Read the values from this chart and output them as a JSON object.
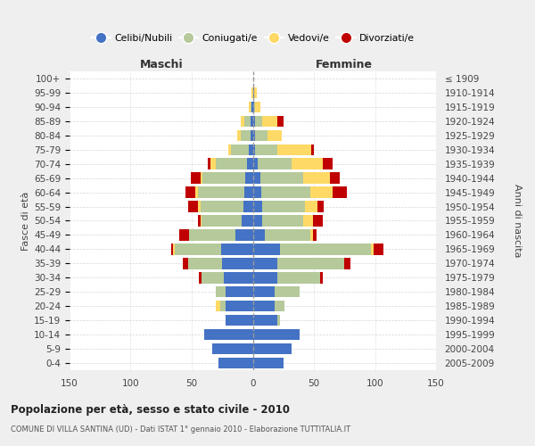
{
  "age_groups": [
    "0-4",
    "5-9",
    "10-14",
    "15-19",
    "20-24",
    "25-29",
    "30-34",
    "35-39",
    "40-44",
    "45-49",
    "50-54",
    "55-59",
    "60-64",
    "65-69",
    "70-74",
    "75-79",
    "80-84",
    "85-89",
    "90-94",
    "95-99",
    "100+"
  ],
  "birth_years": [
    "2005-2009",
    "2000-2004",
    "1995-1999",
    "1990-1994",
    "1985-1989",
    "1980-1984",
    "1975-1979",
    "1970-1974",
    "1965-1969",
    "1960-1964",
    "1955-1959",
    "1950-1954",
    "1945-1949",
    "1940-1944",
    "1935-1939",
    "1930-1934",
    "1925-1929",
    "1920-1924",
    "1915-1919",
    "1910-1914",
    "≤ 1909"
  ],
  "colors": {
    "celibi": "#4472c4",
    "coniugati": "#b5c99a",
    "vedovi": "#ffd966",
    "divorziati": "#c00000"
  },
  "maschi": {
    "celibi": [
      28,
      33,
      40,
      22,
      22,
      22,
      24,
      25,
      26,
      14,
      9,
      8,
      7,
      6,
      5,
      3,
      2,
      2,
      1,
      0,
      0
    ],
    "coniugati": [
      0,
      0,
      0,
      0,
      5,
      8,
      18,
      28,
      38,
      38,
      33,
      35,
      38,
      35,
      25,
      15,
      8,
      5,
      1,
      0,
      0
    ],
    "vedovi": [
      0,
      0,
      0,
      0,
      3,
      0,
      0,
      0,
      1,
      0,
      1,
      2,
      2,
      2,
      5,
      2,
      3,
      3,
      1,
      1,
      0
    ],
    "divorziati": [
      0,
      0,
      0,
      0,
      0,
      0,
      2,
      4,
      2,
      8,
      2,
      8,
      8,
      8,
      2,
      0,
      0,
      0,
      0,
      0,
      0
    ]
  },
  "femmine": {
    "celibi": [
      25,
      32,
      38,
      20,
      18,
      18,
      20,
      20,
      22,
      10,
      8,
      8,
      7,
      6,
      4,
      2,
      2,
      2,
      1,
      1,
      0
    ],
    "coniugati": [
      0,
      0,
      0,
      2,
      8,
      20,
      35,
      55,
      75,
      37,
      33,
      35,
      40,
      35,
      28,
      18,
      10,
      6,
      1,
      0,
      0
    ],
    "vedovi": [
      0,
      0,
      0,
      0,
      0,
      0,
      0,
      0,
      2,
      2,
      8,
      10,
      18,
      22,
      25,
      28,
      12,
      12,
      4,
      2,
      0
    ],
    "divorziati": [
      0,
      0,
      0,
      0,
      0,
      0,
      2,
      5,
      8,
      3,
      8,
      5,
      12,
      8,
      8,
      2,
      0,
      5,
      0,
      0,
      0
    ]
  },
  "xlim": 150,
  "xticks": [
    -150,
    -100,
    -50,
    0,
    50,
    100,
    150
  ],
  "title": "Popolazione per età, sesso e stato civile - 2010",
  "subtitle": "COMUNE DI VILLA SANTINA (UD) - Dati ISTAT 1° gennaio 2010 - Elaborazione TUTTITALIA.IT",
  "ylabel_left": "Fasce di età",
  "ylabel_right": "Anni di nascita",
  "xlabel_maschi": "Maschi",
  "xlabel_femmine": "Femmine",
  "bg_color": "#efefef",
  "plot_bg": "#ffffff",
  "grid_color": "#cccccc",
  "bar_height": 0.78,
  "legend_labels": [
    "Celibi/Nubili",
    "Coniugati/e",
    "Vedovi/e",
    "Divorziati/e"
  ],
  "legend_keys": [
    "celibi",
    "coniugati",
    "vedovi",
    "divorziati"
  ]
}
